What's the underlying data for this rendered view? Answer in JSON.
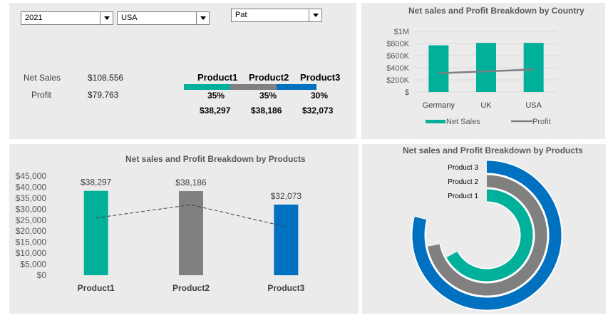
{
  "filters": {
    "year": "2021",
    "country": "USA",
    "salesperson": "Pat"
  },
  "summary": {
    "net_sales_label": "Net Sales",
    "net_sales_value": "$108,556",
    "profit_label": "Profit",
    "profit_value": "$79,763"
  },
  "products": [
    {
      "name": "Product1",
      "pct": "35%",
      "value": "$38,297",
      "share": 0.35,
      "color": "#00b09b"
    },
    {
      "name": "Product2",
      "pct": "35%",
      "value": "$38,186",
      "share": 0.35,
      "color": "#808080"
    },
    {
      "name": "Product3",
      "pct": "30%",
      "value": "$32,073",
      "share": 0.3,
      "color": "#0070c0"
    }
  ],
  "chart_data": [
    {
      "type": "bar",
      "title": "Net sales and Profit Breakdown by Country",
      "categories": [
        "Germany",
        "UK",
        "USA"
      ],
      "series": [
        {
          "name": "Net Sales",
          "type": "bar",
          "color": "#00b09b",
          "values": [
            770000,
            810000,
            810000
          ]
        },
        {
          "name": "Profit",
          "type": "line",
          "color": "#7f7f7f",
          "values": [
            310000,
            340000,
            370000
          ]
        }
      ],
      "ylim": [
        0,
        1000000
      ],
      "yticks": [
        0,
        200000,
        400000,
        600000,
        800000,
        1000000
      ],
      "ytick_labels": [
        "$",
        "$200K",
        "$400K",
        "$600K",
        "$800K",
        "$1M"
      ],
      "legend": "bottom"
    },
    {
      "type": "bar",
      "title": "Net sales and Profit Breakdown by Products",
      "categories": [
        "Product1",
        "Product2",
        "Product3"
      ],
      "series": [
        {
          "type": "bar",
          "colors": [
            "#00b09b",
            "#808080",
            "#0070c0"
          ],
          "values": [
            38297,
            38186,
            32073
          ],
          "labels": [
            "$38,297",
            "$38,186",
            "$32,073"
          ]
        },
        {
          "type": "line",
          "style": "dashed",
          "color": "#404040",
          "values": [
            26000,
            32000,
            22000
          ]
        }
      ],
      "ylim": [
        0,
        45000
      ],
      "yticks": [
        0,
        5000,
        10000,
        15000,
        20000,
        25000,
        30000,
        35000,
        40000,
        45000
      ],
      "ytick_labels": [
        "$0",
        "$5,000",
        "$10,000",
        "$15,000",
        "$20,000",
        "$25,000",
        "$30,000",
        "$35,000",
        "$40,000",
        "$45,000"
      ]
    },
    {
      "type": "radial-bar",
      "title": "Net sales and Profit Breakdown by Products",
      "categories": [
        "Product 3",
        "Product 2",
        "Product 1"
      ],
      "values": [
        0.79,
        0.72,
        0.67
      ],
      "colors": [
        "#0070c0",
        "#808080",
        "#00b09b"
      ]
    }
  ]
}
